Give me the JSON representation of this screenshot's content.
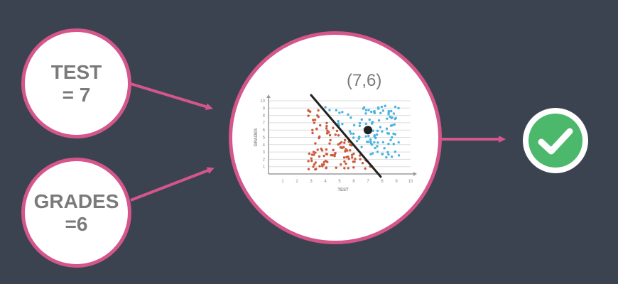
{
  "inputs": {
    "test": {
      "line1": "TEST",
      "line2": "= 7"
    },
    "grades": {
      "line1": "GRADES",
      "line2": "=6"
    }
  },
  "model": {
    "point_label": "(7,6)"
  },
  "colors": {
    "background": "#3b4350",
    "accent": "#d4568a",
    "node_fill": "#ffffff",
    "label_text": "#7a7a7a",
    "class_a": "#cc5a3d",
    "class_b": "#4ab3e0",
    "check_green": "#4cb86b"
  },
  "output": {
    "icon": "check-icon"
  },
  "chart_data": {
    "type": "scatter",
    "xlabel": "TEST",
    "ylabel": "GRADES",
    "xlim": [
      0,
      10
    ],
    "ylim": [
      0,
      10
    ],
    "x_ticks": [
      "1",
      "2",
      "3",
      "4",
      "5",
      "6",
      "7",
      "8",
      "9",
      "10"
    ],
    "y_ticks": [
      "1",
      "2",
      "3",
      "4",
      "5",
      "6",
      "7",
      "8",
      "9",
      "10"
    ],
    "grid": true,
    "boundary": {
      "from": [
        3,
        10
      ],
      "to": [
        8,
        0
      ]
    },
    "highlight_point": {
      "x": 7,
      "y": 6
    }
  }
}
